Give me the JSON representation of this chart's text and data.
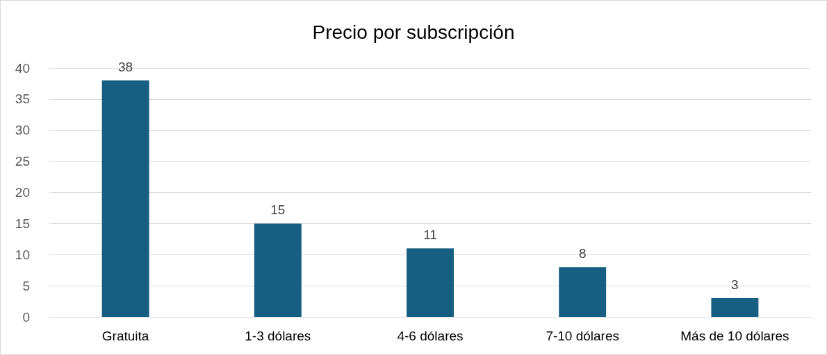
{
  "chart_data": {
    "type": "bar",
    "title": "Precio por subscripción",
    "categories": [
      "Gratuita",
      "1-3 dólares",
      "4-6 dólares",
      "7-10 dólares",
      "Más de 10 dólares"
    ],
    "values": [
      38,
      15,
      11,
      8,
      3
    ],
    "color": "#175f82",
    "ylim": [
      0,
      40
    ],
    "yticks": [
      0,
      5,
      10,
      15,
      20,
      25,
      30,
      35,
      40
    ],
    "grid": "y",
    "data_labels": true
  }
}
